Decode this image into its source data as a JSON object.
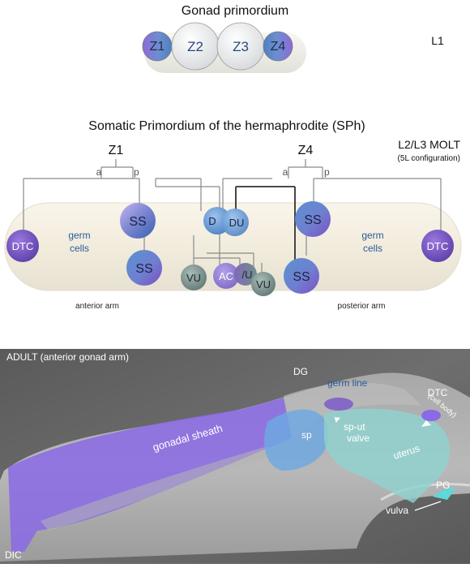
{
  "panel_top": {
    "title": "Gonad primordium",
    "stage": "L1",
    "cells": [
      "Z1",
      "Z2",
      "Z3",
      "Z4"
    ]
  },
  "panel_middle": {
    "title": "Somatic Primordium of the hermaphrodite (SPh)",
    "stage": "L2/L3 MOLT",
    "stage_note": "(5L configuration)",
    "lineage_left": "Z1",
    "lineage_right": "Z4",
    "branch_a": "a",
    "branch_p": "p",
    "cells": {
      "dtc": "DTC",
      "ss": "SS",
      "vu": "VU",
      "ac": "AC",
      "vu_partial": "/U",
      "d": "D",
      "du": "DU"
    },
    "germ_cells": "germ cells",
    "anterior_arm": "anterior arm",
    "posterior_arm": "posterior arm",
    "colors": {
      "purple": "#7a5cc8",
      "blue": "#4a86c8",
      "gray_green": "#7f9a96",
      "label_blue": "#2a5a9a"
    }
  },
  "panel_bottom": {
    "title": "ADULT (anterior gonad arm)",
    "dg": "DG",
    "germ_line": "germ line",
    "dtc": "DTC",
    "cell_body": "(cell body)",
    "gonadal_sheath": "gonadal   sheath",
    "sp": "sp",
    "sp_ut_valve_1": "sp-ut",
    "sp_ut_valve_2": "valve",
    "uterus": "uterus",
    "pg": "PG",
    "vulva": "vulva",
    "method": "DIC",
    "colors": {
      "sheath": "#8a6ae6",
      "sp": "#6fa8e0",
      "uterus": "#8fd3cf"
    }
  }
}
